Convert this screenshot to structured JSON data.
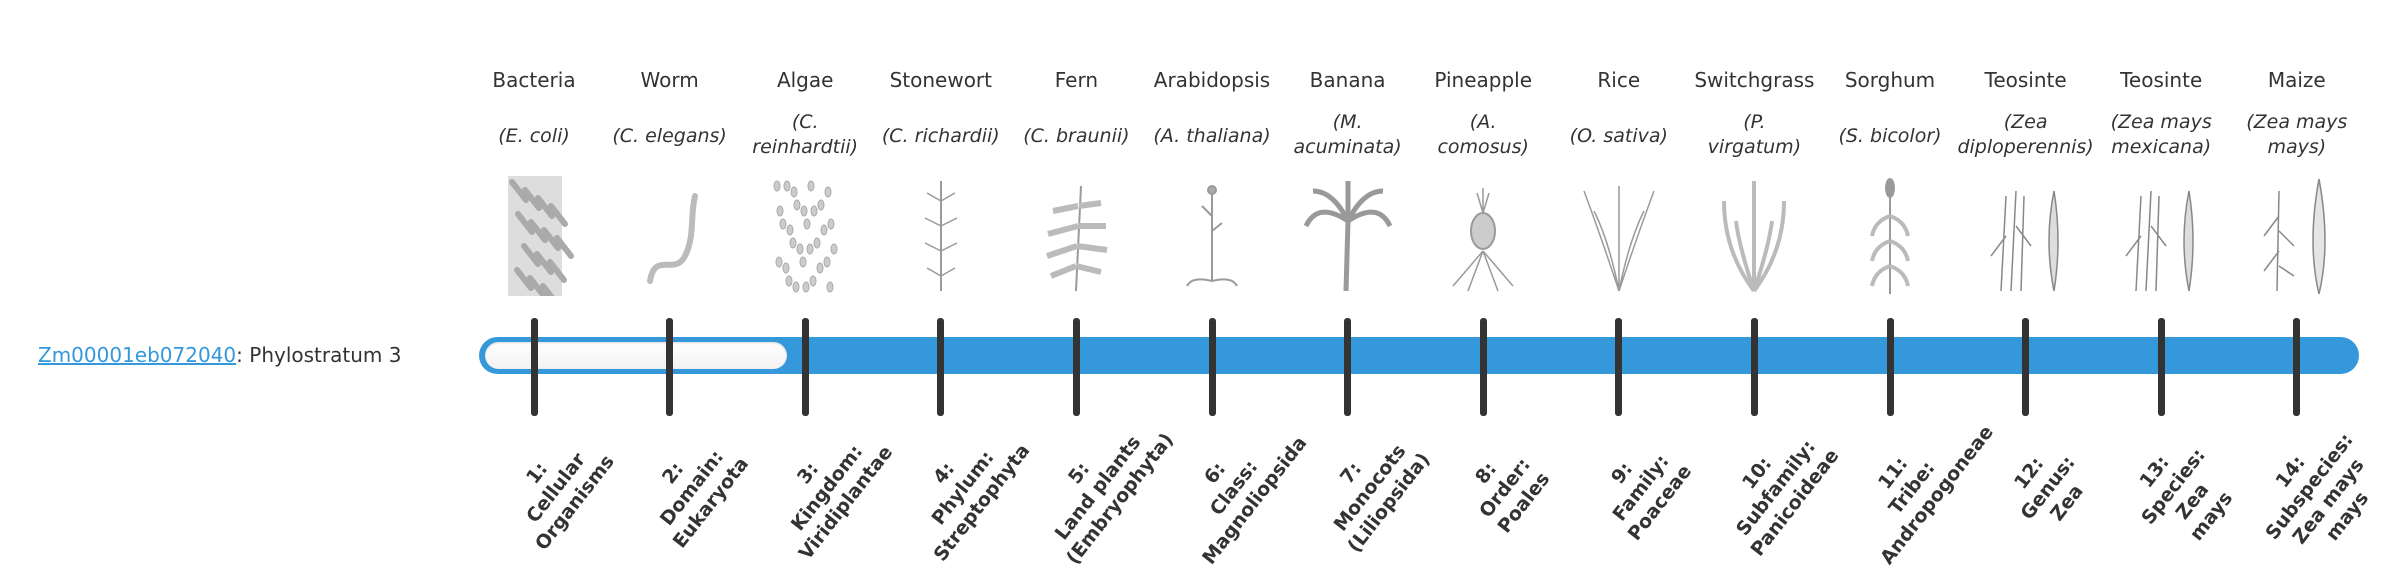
{
  "gene": {
    "id": "Zm00001eb072040",
    "separator": ":",
    "text": " Phylostratum 3"
  },
  "phylostratum": 3,
  "colors": {
    "accent": "#3498db",
    "tick": "#333333",
    "text": "#333333"
  },
  "strata": [
    {
      "title": "Bacteria",
      "species": [
        "(E. coli)"
      ],
      "icon": "bacteria-image",
      "label": [
        "1:",
        "Cellular",
        "Organisms"
      ]
    },
    {
      "title": "Worm",
      "species": [
        "(C. elegans)"
      ],
      "icon": "worm-image",
      "label": [
        "2:",
        "Domain:",
        "Eukaryota"
      ]
    },
    {
      "title": "Algae",
      "species": [
        "(C.",
        "reinhardtii)"
      ],
      "icon": "algae-image",
      "label": [
        "3:",
        "Kingdom:",
        "Viridiplantae"
      ]
    },
    {
      "title": "Stonewort",
      "species": [
        "(C. richardii)"
      ],
      "icon": "stonewort-image",
      "label": [
        "4:",
        "Phylum:",
        "Streptophyta"
      ]
    },
    {
      "title": "Fern",
      "species": [
        "(C. braunii)"
      ],
      "icon": "fern-image",
      "label": [
        "5:",
        "Land plants",
        "(Embryophyta)"
      ]
    },
    {
      "title": "Arabidopsis",
      "species": [
        "(A. thaliana)"
      ],
      "icon": "arabidopsis-image",
      "label": [
        "6:",
        "Class:",
        "Magnoliopsida"
      ]
    },
    {
      "title": "Banana",
      "species": [
        "(M.",
        "acuminata)"
      ],
      "icon": "banana-image",
      "label": [
        "7:",
        "Monocots",
        "(Liliopsida)"
      ]
    },
    {
      "title": "Pineapple",
      "species": [
        "(A.",
        "comosus)"
      ],
      "icon": "pineapple-image",
      "label": [
        "8:",
        "Order:",
        "Poales"
      ]
    },
    {
      "title": "Rice",
      "species": [
        "(O. sativa)"
      ],
      "icon": "rice-image",
      "label": [
        "9:",
        "Family:",
        "Poaceae"
      ]
    },
    {
      "title": "Switchgrass",
      "species": [
        "(P.",
        "virgatum)"
      ],
      "icon": "switchgrass-image",
      "label": [
        "10:",
        "Subfamily:",
        "Panicoideae"
      ]
    },
    {
      "title": "Sorghum",
      "species": [
        "(S. bicolor)"
      ],
      "icon": "sorghum-image",
      "label": [
        "11:",
        "Tribe:",
        "Andropogoneae"
      ]
    },
    {
      "title": "Teosinte",
      "species": [
        "(Zea",
        "diploperennis)"
      ],
      "icon": "teosinte-image",
      "label": [
        "12:",
        "Genus:",
        "Zea"
      ]
    },
    {
      "title": "Teosinte",
      "species": [
        "(Zea mays",
        "mexicana)"
      ],
      "icon": "teosinte-image",
      "label": [
        "13:",
        "Species:",
        "Zea",
        "mays"
      ]
    },
    {
      "title": "Maize",
      "species": [
        "(Zea mays",
        "mays)"
      ],
      "icon": "maize-image",
      "label": [
        "14:",
        "Subspecies:",
        "Zea mays",
        "mays"
      ]
    }
  ]
}
